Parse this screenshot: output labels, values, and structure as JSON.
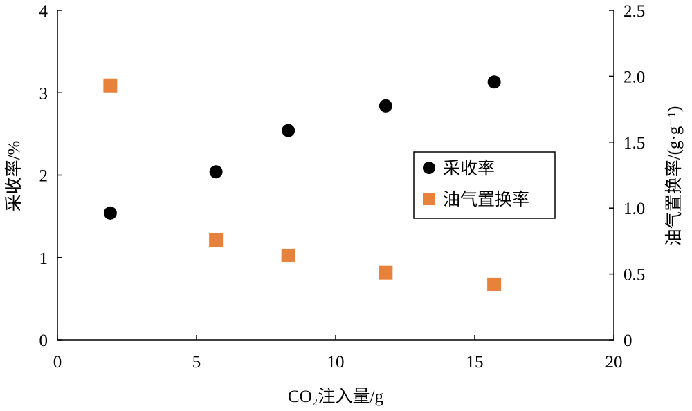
{
  "chart_data": {
    "type": "scatter",
    "xlabel": "CO₂注入量/g",
    "ylabel": "采收率/%",
    "y2label": "油气置换率/(g·g⁻¹)",
    "xlim": [
      0,
      20
    ],
    "ylim": [
      0,
      4
    ],
    "y2lim": [
      0,
      2.5
    ],
    "x_ticks": [
      "0",
      "5",
      "10",
      "15",
      "20"
    ],
    "y_ticks": [
      "0",
      "1",
      "2",
      "3",
      "4"
    ],
    "y2_ticks": [
      "0",
      "0.5",
      "1.0",
      "1.5",
      "2.0",
      "2.5"
    ],
    "grid": false,
    "legend_position": "center-right",
    "series": [
      {
        "name": "采收率",
        "axis": "left",
        "marker": "circle",
        "color": "#000000",
        "points": [
          [
            1.9,
            1.54
          ],
          [
            5.7,
            2.04
          ],
          [
            8.3,
            2.54
          ],
          [
            11.8,
            2.84
          ],
          [
            15.7,
            3.13
          ]
        ]
      },
      {
        "name": "油气置换率",
        "axis": "right",
        "marker": "square",
        "color": "#E8813A",
        "points": [
          [
            1.9,
            1.93
          ],
          [
            5.7,
            0.76
          ],
          [
            8.3,
            0.64
          ],
          [
            11.8,
            0.51
          ],
          [
            15.7,
            0.42
          ]
        ]
      }
    ]
  }
}
